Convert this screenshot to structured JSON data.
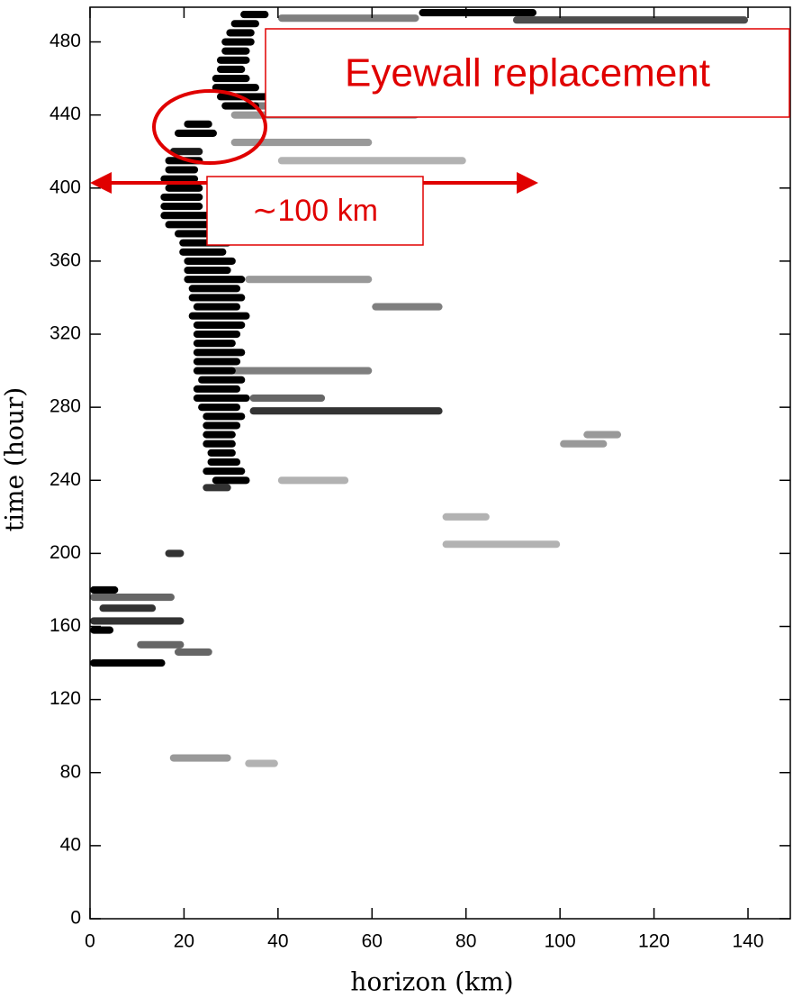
{
  "chart_data": {
    "type": "heatmap",
    "xlabel": "horizon (km)",
    "ylabel": "time (hour)",
    "xlim": [
      0,
      149
    ],
    "ylim": [
      0,
      499
    ],
    "xticks": [
      0,
      20,
      40,
      60,
      80,
      100,
      120,
      140
    ],
    "yticks": [
      0,
      40,
      80,
      120,
      160,
      200,
      240,
      280,
      320,
      360,
      400,
      440,
      480
    ],
    "color": "#000000",
    "streaks": [
      [
        17,
        24,
        420,
        0.9
      ],
      [
        16,
        24,
        415,
        1
      ],
      [
        16,
        23,
        410,
        1
      ],
      [
        15,
        23,
        405,
        1
      ],
      [
        16,
        24,
        400,
        1
      ],
      [
        15,
        24,
        395,
        1
      ],
      [
        15,
        24,
        390,
        1
      ],
      [
        15,
        26,
        385,
        1
      ],
      [
        16,
        27,
        380,
        1
      ],
      [
        18,
        28,
        375,
        1
      ],
      [
        19,
        30,
        370,
        1
      ],
      [
        19,
        29,
        365,
        1
      ],
      [
        20,
        31,
        360,
        1
      ],
      [
        20,
        30,
        355,
        1
      ],
      [
        20,
        33,
        350,
        1
      ],
      [
        21,
        32,
        345,
        1
      ],
      [
        21,
        33,
        340,
        1
      ],
      [
        22,
        32,
        335,
        1
      ],
      [
        21,
        34,
        330,
        1
      ],
      [
        22,
        33,
        325,
        1
      ],
      [
        22,
        32,
        320,
        1
      ],
      [
        22,
        31,
        315,
        1
      ],
      [
        22,
        33,
        310,
        1
      ],
      [
        22,
        32,
        305,
        1
      ],
      [
        22,
        31,
        300,
        1
      ],
      [
        23,
        33,
        295,
        1
      ],
      [
        22,
        32,
        290,
        1
      ],
      [
        22,
        34,
        285,
        1
      ],
      [
        23,
        32,
        280,
        1
      ],
      [
        24,
        33,
        275,
        1
      ],
      [
        24,
        32,
        270,
        1
      ],
      [
        24,
        31,
        265,
        1
      ],
      [
        24,
        31,
        260,
        1
      ],
      [
        25,
        31,
        255,
        1
      ],
      [
        25,
        32,
        250,
        1
      ],
      [
        24,
        33,
        245,
        1
      ],
      [
        26,
        34,
        240,
        1
      ],
      [
        24,
        30,
        236,
        0.8
      ],
      [
        18,
        27,
        430,
        1
      ],
      [
        20,
        26,
        435,
        1
      ],
      [
        28,
        36,
        445,
        1
      ],
      [
        27,
        40,
        450,
        1
      ],
      [
        26,
        36,
        455,
        1
      ],
      [
        26,
        34,
        460,
        1
      ],
      [
        27,
        33,
        465,
        1
      ],
      [
        27,
        34,
        470,
        1
      ],
      [
        28,
        34,
        475,
        1
      ],
      [
        28,
        35,
        480,
        1
      ],
      [
        29,
        35,
        485,
        1
      ],
      [
        30,
        36,
        490,
        1
      ],
      [
        32,
        38,
        495,
        1
      ],
      [
        70,
        95,
        496,
        1
      ],
      [
        90,
        140,
        492,
        0.7
      ],
      [
        40,
        70,
        493,
        0.5
      ],
      [
        35,
        90,
        445,
        0.5
      ],
      [
        30,
        70,
        440,
        0.4
      ],
      [
        30,
        60,
        425,
        0.4
      ],
      [
        40,
        80,
        415,
        0.3
      ],
      [
        30,
        55,
        395,
        0.4
      ],
      [
        33,
        60,
        350,
        0.4
      ],
      [
        60,
        75,
        335,
        0.5
      ],
      [
        30,
        60,
        300,
        0.5
      ],
      [
        34,
        75,
        278,
        0.8
      ],
      [
        34,
        50,
        285,
        0.6
      ],
      [
        100,
        110,
        260,
        0.4
      ],
      [
        105,
        113,
        265,
        0.4
      ],
      [
        40,
        55,
        240,
        0.3
      ],
      [
        75,
        85,
        220,
        0.3
      ],
      [
        75,
        100,
        205,
        0.3
      ],
      [
        16,
        20,
        200,
        0.8
      ],
      [
        0,
        6,
        180,
        1
      ],
      [
        0,
        18,
        176,
        0.6
      ],
      [
        2,
        14,
        170,
        0.8
      ],
      [
        0,
        20,
        163,
        0.8
      ],
      [
        0,
        5,
        158,
        1
      ],
      [
        10,
        20,
        150,
        0.6
      ],
      [
        18,
        26,
        146,
        0.6
      ],
      [
        0,
        16,
        140,
        1
      ],
      [
        17,
        30,
        88,
        0.4
      ],
      [
        33,
        40,
        85,
        0.3
      ]
    ],
    "annotations": [
      "Eyewall replacement",
      "∼100 km"
    ]
  }
}
